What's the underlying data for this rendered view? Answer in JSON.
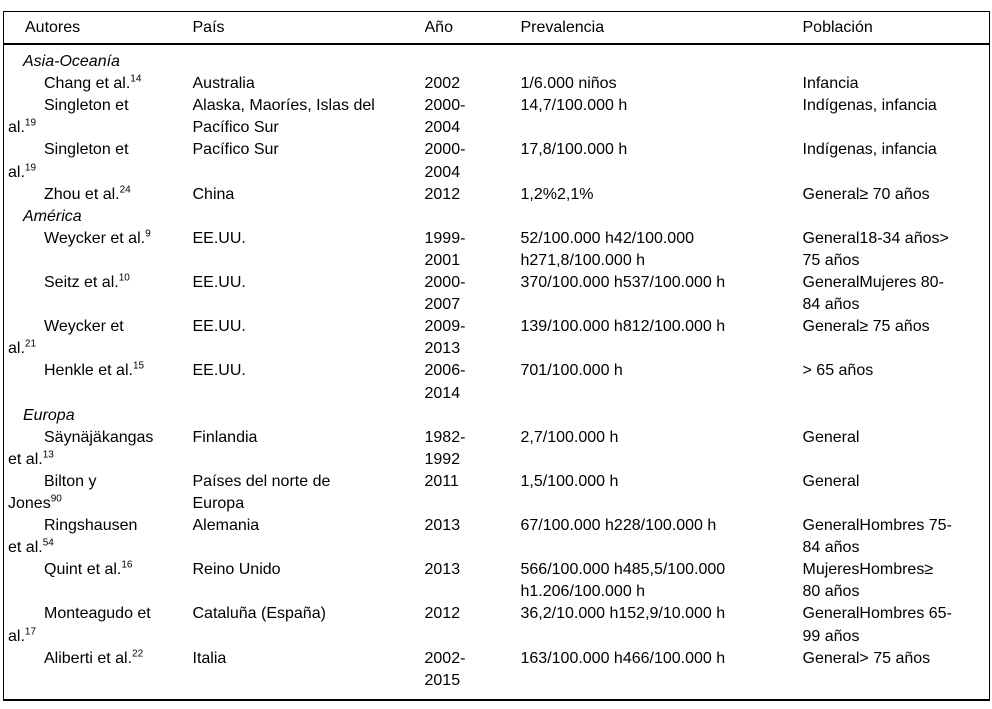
{
  "table": {
    "columns": [
      "Autores",
      "País",
      "Año",
      "Prevalencia",
      "Población"
    ],
    "sections": [
      {
        "title": "Asia-Oceanía",
        "rows": [
          {
            "autores": "Chang et al.",
            "ref": "14",
            "pais": "Australia",
            "ano": "2002",
            "prevalencia": "1/6.000 niños",
            "poblacion": "Infancia"
          },
          {
            "autores": "Singleton et\nal.",
            "ref": "19",
            "pais": "Alaska, Maoríes, Islas del\nPacífico Sur",
            "ano": "2000-\n2004",
            "prevalencia": "14,7/100.000 h",
            "poblacion": "Indígenas, infancia"
          },
          {
            "autores": "Singleton et\nal.",
            "ref": "19",
            "pais": "Pacífico Sur",
            "ano": "2000-\n2004",
            "prevalencia": "17,8/100.000 h",
            "poblacion": "Indígenas, infancia"
          },
          {
            "autores": "Zhou et al.",
            "ref": "24",
            "pais": "China",
            "ano": "2012",
            "prevalencia": "1,2%2,1%",
            "poblacion": "General≥ 70 años"
          }
        ]
      },
      {
        "title": "América",
        "rows": [
          {
            "autores": "Weycker et al.",
            "ref": "9",
            "pais": "EE.UU.",
            "ano": "1999-\n2001",
            "prevalencia": "52/100.000 h42/100.000\nh271,8/100.000 h",
            "poblacion": "General18-34 años>\n75 años"
          },
          {
            "autores": "Seitz et al.",
            "ref": "10",
            "pais": "EE.UU.",
            "ano": "2000-\n2007",
            "prevalencia": "370/100.000 h537/100.000 h",
            "poblacion": "GeneralMujeres 80-\n84 años"
          },
          {
            "autores": "Weycker et\nal.",
            "ref": "21",
            "pais": "EE.UU.",
            "ano": "2009-\n2013",
            "prevalencia": "139/100.000 h812/100.000 h",
            "poblacion": "General≥ 75 años"
          },
          {
            "autores": "Henkle et al.",
            "ref": "15",
            "pais": "EE.UU.",
            "ano": "2006-\n2014",
            "prevalencia": "701/100.000 h",
            "poblacion": "> 65 años"
          }
        ]
      },
      {
        "title": "Europa",
        "rows": [
          {
            "autores": "Säynäjäkangas\net al.",
            "ref": "13",
            "pais": "Finlandia",
            "ano": "1982-\n1992",
            "prevalencia": "2,7/100.000 h",
            "poblacion": "General"
          },
          {
            "autores": "Bilton y\nJones",
            "ref": "90",
            "pais": "Países del norte de\nEuropa",
            "ano": "2011",
            "prevalencia": "1,5/100.000 h",
            "poblacion": "General"
          },
          {
            "autores": "Ringshausen\net al.",
            "ref": "54",
            "pais": "Alemania",
            "ano": "2013",
            "prevalencia": "67/100.000 h228/100.000 h",
            "poblacion": "GeneralHombres 75-\n84 años"
          },
          {
            "autores": "Quint et al.",
            "ref": "16",
            "pais": "Reino Unido",
            "ano": "2013",
            "prevalencia": "566/100.000 h485,5/100.000\nh1.206/100.000 h",
            "poblacion": "MujeresHombres≥\n80 años"
          },
          {
            "autores": "Monteagudo et\nal.",
            "ref": "17",
            "pais": "Cataluña (España)",
            "ano": "2012",
            "prevalencia": "36,2/10.000 h152,9/10.000 h",
            "poblacion": "GeneralHombres 65-\n99 años"
          },
          {
            "autores": "Aliberti et al.",
            "ref": "22",
            "pais": "Italia",
            "ano": "2002-\n2015",
            "prevalencia": "163/100.000 h466/100.000 h",
            "poblacion": "General> 75 años"
          }
        ]
      }
    ]
  }
}
